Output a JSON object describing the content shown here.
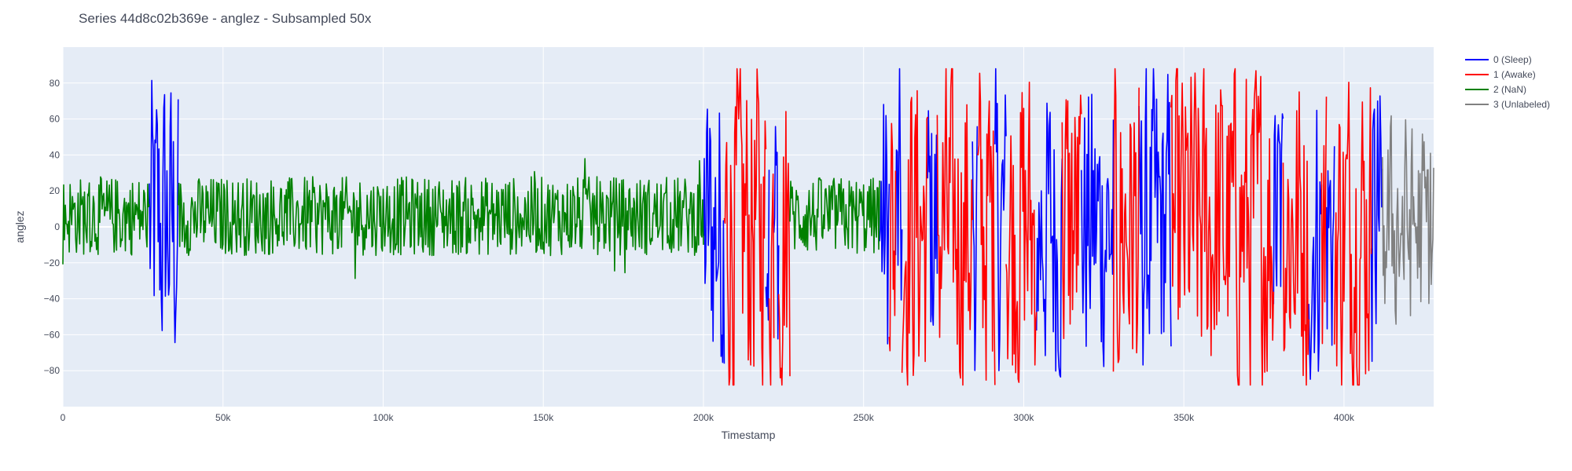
{
  "chart_data": {
    "type": "line",
    "title": "Series 44d8c02b369e - anglez - Subsampled 50x",
    "xlabel": "Timestamp",
    "ylabel": "anglez",
    "xlim": [
      0,
      428000
    ],
    "ylim": [
      -100,
      100
    ],
    "x_ticks": [
      0,
      50000,
      100000,
      150000,
      200000,
      250000,
      300000,
      350000,
      400000
    ],
    "x_tick_labels": [
      "0",
      "50k",
      "100k",
      "150k",
      "200k",
      "250k",
      "300k",
      "350k",
      "400k"
    ],
    "y_ticks": [
      -80,
      -60,
      -40,
      -20,
      0,
      20,
      40,
      60,
      80
    ],
    "y_tick_labels": [
      "−80",
      "−60",
      "−40",
      "−20",
      "0",
      "20",
      "40",
      "60",
      "80"
    ],
    "grid": true,
    "legend_position": "top-right",
    "series": [
      {
        "name": "0 (Sleep)",
        "color": "#0000ff",
        "segments": [
          [
            27000,
            36000
          ],
          [
            200000,
            206500
          ],
          [
            219500,
            220500
          ],
          [
            222000,
            223500
          ],
          [
            255000,
            258000
          ],
          [
            260000,
            262000
          ],
          [
            270000,
            273000
          ],
          [
            284000,
            285500
          ],
          [
            291000,
            294500
          ],
          [
            304000,
            312000
          ],
          [
            318000,
            328000
          ],
          [
            336000,
            346000
          ],
          [
            378000,
            381000
          ],
          [
            389000,
            393000
          ],
          [
            394500,
            397000
          ],
          [
            408500,
            412000
          ]
        ],
        "amplitude": 65
      },
      {
        "name": "1 (Awake)",
        "color": "#ff0000",
        "segments": [
          [
            206500,
            219500
          ],
          [
            220500,
            222000
          ],
          [
            223500,
            227000
          ],
          [
            258000,
            260000
          ],
          [
            262000,
            270000
          ],
          [
            273000,
            284000
          ],
          [
            285500,
            291000
          ],
          [
            294500,
            304000
          ],
          [
            312000,
            318000
          ],
          [
            328000,
            336000
          ],
          [
            346000,
            378000
          ],
          [
            381000,
            389000
          ],
          [
            393000,
            394500
          ],
          [
            397000,
            408500
          ]
        ],
        "amplitude": 70
      },
      {
        "name": "2 (NaN)",
        "color": "#008000",
        "segments": [
          [
            0,
            27000
          ],
          [
            36000,
            200000
          ],
          [
            227000,
            255000
          ]
        ],
        "amplitude": 20
      },
      {
        "name": "3 (Unlabeled)",
        "color": "#808080",
        "segments": [
          [
            412000,
            428000
          ]
        ],
        "amplitude": 45
      }
    ]
  }
}
